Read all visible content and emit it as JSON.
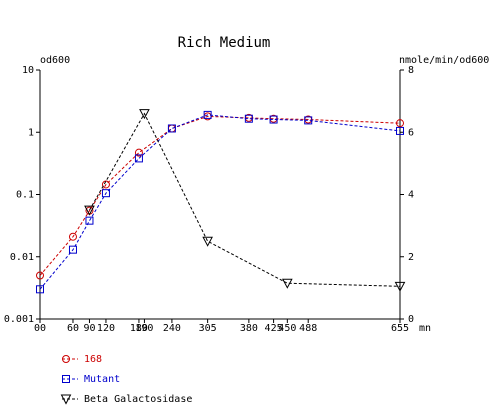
{
  "chart_data": {
    "type": "line",
    "title": "Rich Medium",
    "left_axis": {
      "label": "od600",
      "scale": "log",
      "range": [
        0.001,
        10
      ],
      "ticks": [
        {
          "value": 10,
          "label": "10"
        },
        {
          "value": 1,
          "label": "1"
        },
        {
          "value": 0.1,
          "label": "0.1"
        },
        {
          "value": 0.01,
          "label": "0.01"
        },
        {
          "value": 0.001,
          "label": "0.001"
        }
      ]
    },
    "right_axis": {
      "label": "nmole/min/od600",
      "scale": "linear",
      "range": [
        0,
        8
      ],
      "ticks": [
        {
          "value": 8,
          "label": "8"
        },
        {
          "value": 6,
          "label": "6"
        },
        {
          "value": 4,
          "label": "4"
        },
        {
          "value": 2,
          "label": "2"
        },
        {
          "value": 0,
          "label": "0"
        }
      ]
    },
    "x_axis": {
      "unit": "mn",
      "range": [
        0,
        655
      ],
      "ticks": [
        {
          "value": 0,
          "label": "00"
        },
        {
          "value": 60,
          "label": "60"
        },
        {
          "value": 90,
          "label": "90"
        },
        {
          "value": 120,
          "label": "120"
        },
        {
          "value": 180,
          "label": "180"
        },
        {
          "value": 190,
          "label": "190"
        },
        {
          "value": 240,
          "label": "240"
        },
        {
          "value": 305,
          "label": "305"
        },
        {
          "value": 380,
          "label": "380"
        },
        {
          "value": 425,
          "label": "425"
        },
        {
          "value": 450,
          "label": "450"
        },
        {
          "value": 488,
          "label": "488"
        },
        {
          "value": 655,
          "label": "655"
        }
      ]
    },
    "series": [
      {
        "name": "168",
        "color": "#cc0000",
        "marker": "circle",
        "axis": "left",
        "x": [
          0,
          60,
          90,
          120,
          180,
          240,
          305,
          380,
          425,
          488,
          655
        ],
        "y": [
          0.005,
          0.021,
          0.055,
          0.145,
          0.47,
          1.15,
          1.8,
          1.7,
          1.65,
          1.6,
          1.4
        ]
      },
      {
        "name": "Mutant",
        "color": "#0000cc",
        "marker": "square",
        "axis": "left",
        "x": [
          0,
          60,
          90,
          120,
          180,
          240,
          305,
          380,
          425,
          488,
          655
        ],
        "y": [
          0.003,
          0.013,
          0.038,
          0.105,
          0.38,
          1.15,
          1.9,
          1.65,
          1.6,
          1.55,
          1.05
        ]
      },
      {
        "name": "Beta Galactosidase",
        "color": "#000000",
        "marker": "triangle-down",
        "axis": "right",
        "x": [
          90,
          190,
          305,
          450,
          655
        ],
        "y": [
          3.5,
          6.6,
          2.5,
          1.15,
          1.05
        ]
      }
    ]
  }
}
